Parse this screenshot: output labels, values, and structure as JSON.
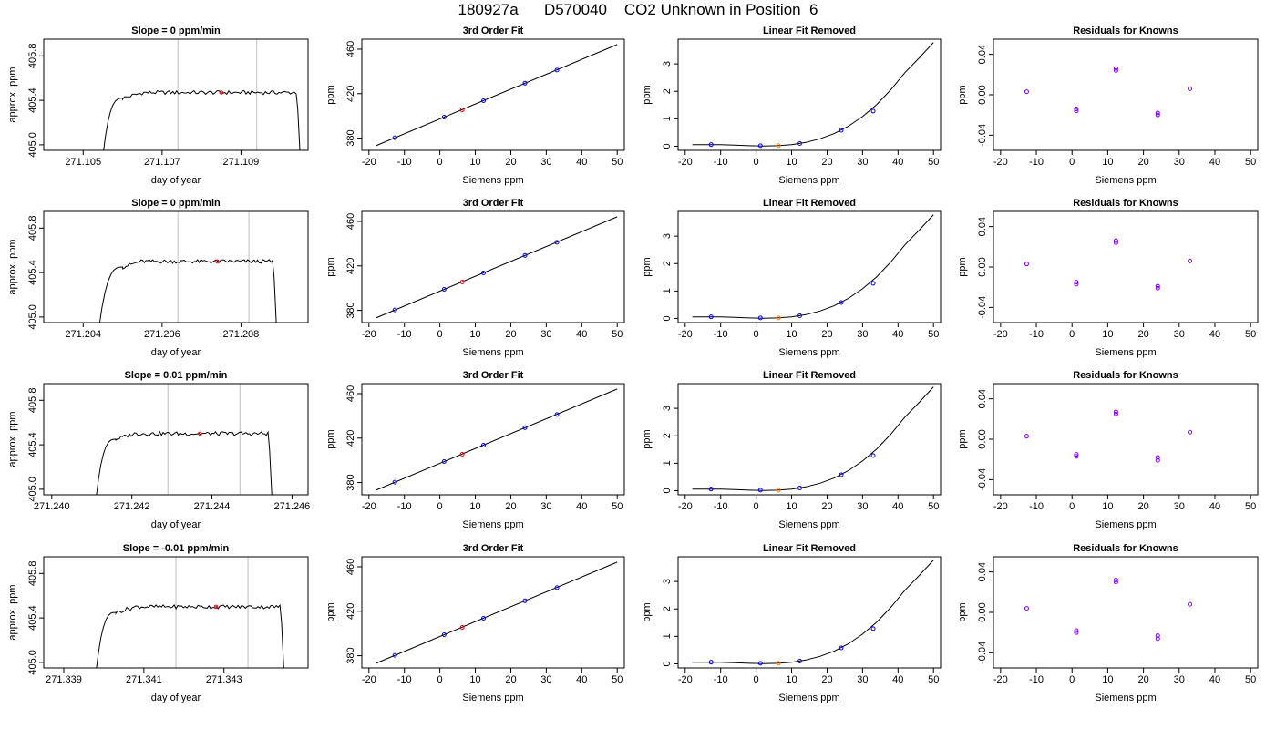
{
  "page": {
    "title": "180927a      D570040    CO2 Unknown in Position  6"
  },
  "colors": {
    "axis": "#000000",
    "trace": "#000000",
    "window_line": "#bfbfbf",
    "mean_point": "#ff0000",
    "known_point": "#0000ff",
    "unknown_fit_point": "#ff0000",
    "unknown_removed_point": "#ff7f00",
    "residual_point": "#8000ff"
  },
  "chart_data": [
    {
      "type": "line",
      "row": 1,
      "panel": "timeseries",
      "title": "Slope =  0  ppm/min",
      "xlabel": "day of year",
      "ylabel": "approx. ppm",
      "xlim": [
        271.104,
        271.1107
      ],
      "ylim": [
        404.95,
        405.95
      ],
      "xticks": [
        271.105,
        271.107,
        271.109
      ],
      "xtick_labels": [
        "271.105",
        "271.107",
        "271.109"
      ],
      "yticks": [
        405.0,
        405.4,
        405.8
      ],
      "ytick_labels": [
        "405.0",
        "405.4",
        "405.8"
      ],
      "window": [
        271.1074,
        271.1094
      ],
      "mean_point": {
        "x": 271.1085,
        "y": 405.47
      },
      "trace": {
        "rise_start": 271.1055,
        "rise_end": 271.106,
        "fall_start": 271.1104,
        "fall_end": 271.1105,
        "base": 404.9,
        "plateau": 405.47
      }
    },
    {
      "type": "line",
      "row": 2,
      "panel": "timeseries",
      "title": "Slope =  0  ppm/min",
      "xlabel": "day of year",
      "ylabel": "approx. ppm",
      "xlim": [
        271.203,
        271.2097
      ],
      "ylim": [
        404.95,
        405.95
      ],
      "xticks": [
        271.204,
        271.206,
        271.208
      ],
      "xtick_labels": [
        "271.204",
        "271.206",
        "271.208"
      ],
      "yticks": [
        405.0,
        405.4,
        405.8
      ],
      "ytick_labels": [
        "405.0",
        "405.4",
        "405.8"
      ],
      "window": [
        271.2064,
        271.2082
      ],
      "mean_point": {
        "x": 271.2074,
        "y": 405.5
      },
      "trace": {
        "rise_start": 271.2044,
        "rise_end": 271.205,
        "fall_start": 271.2088,
        "fall_end": 271.2089,
        "base": 404.9,
        "plateau": 405.5
      }
    },
    {
      "type": "line",
      "row": 3,
      "panel": "timeseries",
      "title": "Slope =  0.01  ppm/min",
      "xlabel": "day of year",
      "ylabel": "approx. ppm",
      "xlim": [
        271.2398,
        271.2464
      ],
      "ylim": [
        404.95,
        405.95
      ],
      "xticks": [
        271.24,
        271.242,
        271.244,
        271.246
      ],
      "xtick_labels": [
        "271.240",
        "271.242",
        "271.244",
        "271.246"
      ],
      "yticks": [
        405.0,
        405.4,
        405.8
      ],
      "ytick_labels": [
        "405.0",
        "405.4",
        "405.8"
      ],
      "window": [
        271.2429,
        271.2447
      ],
      "mean_point": {
        "x": 271.2437,
        "y": 405.5
      },
      "trace": {
        "rise_start": 271.2411,
        "rise_end": 271.2416,
        "fall_start": 271.2454,
        "fall_end": 271.2455,
        "base": 404.9,
        "plateau": 405.5
      }
    },
    {
      "type": "line",
      "row": 4,
      "panel": "timeseries",
      "title": "Slope =  -0.01  ppm/min",
      "xlabel": "day of year",
      "ylabel": "approx. ppm",
      "xlim": [
        271.3385,
        271.3451
      ],
      "ylim": [
        404.95,
        405.95
      ],
      "xticks": [
        271.339,
        271.341,
        271.343
      ],
      "xtick_labels": [
        "271.339",
        "271.341",
        "271.343"
      ],
      "yticks": [
        405.0,
        405.4,
        405.8
      ],
      "ytick_labels": [
        "405.0",
        "405.4",
        "405.8"
      ],
      "window": [
        271.3418,
        271.3436
      ],
      "mean_point": {
        "x": 271.3428,
        "y": 405.5
      },
      "trace": {
        "rise_start": 271.3398,
        "rise_end": 271.3403,
        "fall_start": 271.3444,
        "fall_end": 271.3445,
        "base": 404.9,
        "plateau": 405.5
      }
    },
    {
      "type": "scatter",
      "row": 1,
      "panel": "fit",
      "title": "3rd Order Fit",
      "xlabel": "Siemens ppm",
      "ylabel": "ppm",
      "xlim": [
        -22,
        52
      ],
      "ylim": [
        369,
        469
      ],
      "xticks": [
        -20,
        -10,
        0,
        10,
        20,
        30,
        40,
        50
      ],
      "xtick_labels": [
        "-20",
        "-10",
        "0",
        "10",
        "20",
        "30",
        "40",
        "50"
      ],
      "yticks": [
        380,
        420,
        460
      ],
      "ytick_labels": [
        "380",
        "420",
        "460"
      ],
      "fit_line": {
        "x": [
          -18,
          50
        ],
        "y": [
          373.2,
          464.2
        ]
      },
      "knowns": {
        "x": [
          -12.7,
          1.2,
          12.3,
          24.0,
          33.0
        ],
        "y": [
          380.4,
          398.9,
          413.7,
          429.4,
          441.2
        ]
      },
      "unknown": {
        "x": 6.3,
        "y": 405.5
      }
    },
    {
      "type": "scatter",
      "row": 2,
      "panel": "fit",
      "title": "3rd Order Fit",
      "xlabel": "Siemens ppm",
      "ylabel": "ppm",
      "xlim": [
        -22,
        52
      ],
      "ylim": [
        369,
        469
      ],
      "xticks": [
        -20,
        -10,
        0,
        10,
        20,
        30,
        40,
        50
      ],
      "xtick_labels": [
        "-20",
        "-10",
        "0",
        "10",
        "20",
        "30",
        "40",
        "50"
      ],
      "yticks": [
        380,
        420,
        460
      ],
      "ytick_labels": [
        "380",
        "420",
        "460"
      ],
      "fit_line": {
        "x": [
          -18,
          50
        ],
        "y": [
          373.2,
          464.2
        ]
      },
      "knowns": {
        "x": [
          -12.7,
          1.2,
          12.3,
          24.0,
          33.0
        ],
        "y": [
          380.4,
          398.9,
          413.7,
          429.4,
          441.2
        ]
      },
      "unknown": {
        "x": 6.3,
        "y": 405.5
      }
    },
    {
      "type": "scatter",
      "row": 3,
      "panel": "fit",
      "title": "3rd Order Fit",
      "xlabel": "Siemens ppm",
      "ylabel": "ppm",
      "xlim": [
        -22,
        52
      ],
      "ylim": [
        369,
        469
      ],
      "xticks": [
        -20,
        -10,
        0,
        10,
        20,
        30,
        40,
        50
      ],
      "xtick_labels": [
        "-20",
        "-10",
        "0",
        "10",
        "20",
        "30",
        "40",
        "50"
      ],
      "yticks": [
        380,
        420,
        460
      ],
      "ytick_labels": [
        "380",
        "420",
        "460"
      ],
      "fit_line": {
        "x": [
          -18,
          50
        ],
        "y": [
          373.2,
          464.2
        ]
      },
      "knowns": {
        "x": [
          -12.7,
          1.2,
          12.3,
          24.0,
          33.0
        ],
        "y": [
          380.4,
          398.9,
          413.7,
          429.4,
          441.2
        ]
      },
      "unknown": {
        "x": 6.3,
        "y": 405.5
      }
    },
    {
      "type": "scatter",
      "row": 4,
      "panel": "fit",
      "title": "3rd Order Fit",
      "xlabel": "Siemens ppm",
      "ylabel": "ppm",
      "xlim": [
        -22,
        52
      ],
      "ylim": [
        369,
        469
      ],
      "xticks": [
        -20,
        -10,
        0,
        10,
        20,
        30,
        40,
        50
      ],
      "xtick_labels": [
        "-20",
        "-10",
        "0",
        "10",
        "20",
        "30",
        "40",
        "50"
      ],
      "yticks": [
        380,
        420,
        460
      ],
      "ytick_labels": [
        "380",
        "420",
        "460"
      ],
      "fit_line": {
        "x": [
          -18,
          50
        ],
        "y": [
          373.2,
          464.2
        ]
      },
      "knowns": {
        "x": [
          -12.7,
          1.2,
          12.3,
          24.0,
          33.0
        ],
        "y": [
          380.4,
          398.9,
          413.7,
          429.4,
          441.2
        ]
      },
      "unknown": {
        "x": 6.3,
        "y": 405.5
      }
    },
    {
      "type": "scatter",
      "row": 1,
      "panel": "linear_removed",
      "title": "Linear Fit Removed",
      "xlabel": "Siemens ppm",
      "ylabel": "ppm",
      "xlim": [
        -22,
        52
      ],
      "ylim": [
        -0.15,
        3.9
      ],
      "xticks": [
        -20,
        -10,
        0,
        10,
        20,
        30,
        40,
        50
      ],
      "xtick_labels": [
        "-20",
        "-10",
        "0",
        "10",
        "20",
        "30",
        "40",
        "50"
      ],
      "yticks": [
        0,
        1,
        2,
        3
      ],
      "ytick_labels": [
        "0",
        "1",
        "2",
        "3"
      ],
      "curve": {
        "x": [
          -18,
          -14,
          -10,
          -6,
          -2,
          2,
          6,
          10,
          14,
          18,
          22,
          26,
          30,
          34,
          38,
          42,
          46,
          50
        ],
        "y": [
          0.06,
          0.06,
          0.055,
          0.04,
          0.02,
          0.01,
          0.02,
          0.06,
          0.14,
          0.27,
          0.46,
          0.73,
          1.08,
          1.52,
          2.06,
          2.69,
          3.22,
          3.78
        ]
      },
      "knowns": {
        "x": [
          -12.7,
          1.2,
          12.3,
          24.0,
          33.0
        ],
        "y": [
          0.06,
          0.02,
          0.1,
          0.58,
          1.28
        ]
      },
      "unknown": {
        "x": 6.3,
        "y": 0.02
      }
    },
    {
      "type": "scatter",
      "row": 2,
      "panel": "linear_removed",
      "title": "Linear Fit Removed",
      "xlabel": "Siemens ppm",
      "ylabel": "ppm",
      "xlim": [
        -22,
        52
      ],
      "ylim": [
        -0.15,
        3.9
      ],
      "xticks": [
        -20,
        -10,
        0,
        10,
        20,
        30,
        40,
        50
      ],
      "xtick_labels": [
        "-20",
        "-10",
        "0",
        "10",
        "20",
        "30",
        "40",
        "50"
      ],
      "yticks": [
        0,
        1,
        2,
        3
      ],
      "ytick_labels": [
        "0",
        "1",
        "2",
        "3"
      ],
      "curve": {
        "x": [
          -18,
          -14,
          -10,
          -6,
          -2,
          2,
          6,
          10,
          14,
          18,
          22,
          26,
          30,
          34,
          38,
          42,
          46,
          50
        ],
        "y": [
          0.06,
          0.06,
          0.055,
          0.04,
          0.02,
          0.01,
          0.02,
          0.06,
          0.14,
          0.27,
          0.46,
          0.73,
          1.08,
          1.52,
          2.06,
          2.69,
          3.22,
          3.78
        ]
      },
      "knowns": {
        "x": [
          -12.7,
          1.2,
          12.3,
          24.0,
          33.0
        ],
        "y": [
          0.06,
          0.02,
          0.1,
          0.58,
          1.28
        ]
      },
      "unknown": {
        "x": 6.3,
        "y": 0.02
      }
    },
    {
      "type": "scatter",
      "row": 3,
      "panel": "linear_removed",
      "title": "Linear Fit Removed",
      "xlabel": "Siemens ppm",
      "ylabel": "ppm",
      "xlim": [
        -22,
        52
      ],
      "ylim": [
        -0.15,
        3.9
      ],
      "xticks": [
        -20,
        -10,
        0,
        10,
        20,
        30,
        40,
        50
      ],
      "xtick_labels": [
        "-20",
        "-10",
        "0",
        "10",
        "20",
        "30",
        "40",
        "50"
      ],
      "yticks": [
        0,
        1,
        2,
        3
      ],
      "ytick_labels": [
        "0",
        "1",
        "2",
        "3"
      ],
      "curve": {
        "x": [
          -18,
          -14,
          -10,
          -6,
          -2,
          2,
          6,
          10,
          14,
          18,
          22,
          26,
          30,
          34,
          38,
          42,
          46,
          50
        ],
        "y": [
          0.06,
          0.06,
          0.055,
          0.04,
          0.02,
          0.01,
          0.02,
          0.06,
          0.14,
          0.27,
          0.46,
          0.73,
          1.08,
          1.52,
          2.06,
          2.69,
          3.22,
          3.78
        ]
      },
      "knowns": {
        "x": [
          -12.7,
          1.2,
          12.3,
          24.0,
          33.0
        ],
        "y": [
          0.06,
          0.02,
          0.1,
          0.58,
          1.28
        ]
      },
      "unknown": {
        "x": 6.3,
        "y": 0.02
      }
    },
    {
      "type": "scatter",
      "row": 4,
      "panel": "linear_removed",
      "title": "Linear Fit Removed",
      "xlabel": "Siemens ppm",
      "ylabel": "ppm",
      "xlim": [
        -22,
        52
      ],
      "ylim": [
        -0.15,
        3.9
      ],
      "xticks": [
        -20,
        -10,
        0,
        10,
        20,
        30,
        40,
        50
      ],
      "xtick_labels": [
        "-20",
        "-10",
        "0",
        "10",
        "20",
        "30",
        "40",
        "50"
      ],
      "yticks": [
        0,
        1,
        2,
        3
      ],
      "ytick_labels": [
        "0",
        "1",
        "2",
        "3"
      ],
      "curve": {
        "x": [
          -18,
          -14,
          -10,
          -6,
          -2,
          2,
          6,
          10,
          14,
          18,
          22,
          26,
          30,
          34,
          38,
          42,
          46,
          50
        ],
        "y": [
          0.06,
          0.06,
          0.055,
          0.04,
          0.02,
          0.01,
          0.02,
          0.06,
          0.14,
          0.27,
          0.46,
          0.73,
          1.08,
          1.52,
          2.06,
          2.69,
          3.22,
          3.78
        ]
      },
      "knowns": {
        "x": [
          -12.7,
          1.2,
          12.3,
          24.0,
          33.0
        ],
        "y": [
          0.06,
          0.02,
          0.1,
          0.58,
          1.28
        ]
      },
      "unknown": {
        "x": 6.3,
        "y": 0.02
      }
    },
    {
      "type": "scatter",
      "row": 1,
      "panel": "residuals",
      "title": "Residuals for Knowns",
      "xlabel": "Siemens ppm",
      "ylabel": "ppm",
      "xlim": [
        -22,
        52
      ],
      "ylim": [
        -0.055,
        0.055
      ],
      "xticks": [
        -20,
        -10,
        0,
        10,
        20,
        30,
        40,
        50
      ],
      "xtick_labels": [
        "-20",
        "-10",
        "0",
        "10",
        "20",
        "30",
        "40",
        "50"
      ],
      "yticks": [
        -0.04,
        0.0,
        0.04
      ],
      "ytick_labels": [
        "-0.04",
        "0.00",
        "0.04"
      ],
      "points": {
        "x": [
          -12.7,
          1.2,
          1.2,
          12.3,
          12.3,
          24.0,
          24.0,
          33.0
        ],
        "y": [
          0.003,
          -0.014,
          -0.016,
          0.026,
          0.024,
          -0.018,
          -0.02,
          0.006
        ]
      }
    },
    {
      "type": "scatter",
      "row": 2,
      "panel": "residuals",
      "title": "Residuals for Knowns",
      "xlabel": "Siemens ppm",
      "ylabel": "ppm",
      "xlim": [
        -22,
        52
      ],
      "ylim": [
        -0.055,
        0.055
      ],
      "xticks": [
        -20,
        -10,
        0,
        10,
        20,
        30,
        40,
        50
      ],
      "xtick_labels": [
        "-20",
        "-10",
        "0",
        "10",
        "20",
        "30",
        "40",
        "50"
      ],
      "yticks": [
        -0.04,
        0.0,
        0.04
      ],
      "ytick_labels": [
        "-0.04",
        "0.00",
        "0.04"
      ],
      "points": {
        "x": [
          -12.7,
          1.2,
          1.2,
          12.3,
          12.3,
          24.0,
          24.0,
          33.0
        ],
        "y": [
          0.003,
          -0.015,
          -0.017,
          0.026,
          0.024,
          -0.019,
          -0.021,
          0.006
        ]
      }
    },
    {
      "type": "scatter",
      "row": 3,
      "panel": "residuals",
      "title": "Residuals for Knowns",
      "xlabel": "Siemens ppm",
      "ylabel": "ppm",
      "xlim": [
        -22,
        52
      ],
      "ylim": [
        -0.055,
        0.055
      ],
      "xticks": [
        -20,
        -10,
        0,
        10,
        20,
        30,
        40,
        50
      ],
      "xtick_labels": [
        "-20",
        "-10",
        "0",
        "10",
        "20",
        "30",
        "40",
        "50"
      ],
      "yticks": [
        -0.04,
        0.0,
        0.04
      ],
      "ytick_labels": [
        "-0.04",
        "0.00",
        "0.04"
      ],
      "points": {
        "x": [
          -12.7,
          1.2,
          1.2,
          12.3,
          12.3,
          24.0,
          24.0,
          33.0
        ],
        "y": [
          0.003,
          -0.015,
          -0.017,
          0.027,
          0.025,
          -0.018,
          -0.021,
          0.007
        ]
      }
    },
    {
      "type": "scatter",
      "row": 4,
      "panel": "residuals",
      "title": "Residuals for Knowns",
      "xlabel": "Siemens ppm",
      "ylabel": "ppm",
      "xlim": [
        -22,
        52
      ],
      "ylim": [
        -0.055,
        0.055
      ],
      "xticks": [
        -20,
        -10,
        0,
        10,
        20,
        30,
        40,
        50
      ],
      "xtick_labels": [
        "-20",
        "-10",
        "0",
        "10",
        "20",
        "30",
        "40",
        "50"
      ],
      "yticks": [
        -0.04,
        0.0,
        0.04
      ],
      "ytick_labels": [
        "-0.04",
        "0.00",
        "0.04"
      ],
      "points": {
        "x": [
          -12.7,
          1.2,
          1.2,
          12.3,
          12.3,
          24.0,
          24.0,
          33.0
        ],
        "y": [
          0.004,
          -0.018,
          -0.02,
          0.032,
          0.03,
          -0.023,
          -0.026,
          0.008
        ]
      }
    }
  ]
}
